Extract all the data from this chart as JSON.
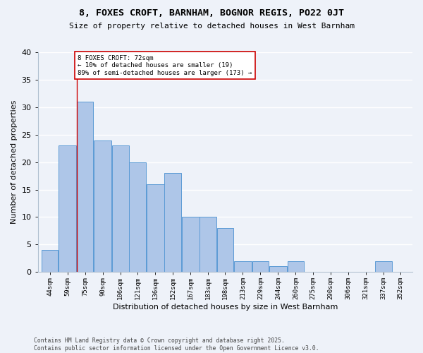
{
  "title": "8, FOXES CROFT, BARNHAM, BOGNOR REGIS, PO22 0JT",
  "subtitle": "Size of property relative to detached houses in West Barnham",
  "xlabel": "Distribution of detached houses by size in West Barnham",
  "ylabel": "Number of detached properties",
  "bar_labels": [
    "44sqm",
    "59sqm",
    "75sqm",
    "90sqm",
    "106sqm",
    "121sqm",
    "136sqm",
    "152sqm",
    "167sqm",
    "183sqm",
    "198sqm",
    "213sqm",
    "229sqm",
    "244sqm",
    "260sqm",
    "275sqm",
    "290sqm",
    "306sqm",
    "321sqm",
    "337sqm",
    "352sqm"
  ],
  "bar_values": [
    4,
    23,
    31,
    24,
    23,
    20,
    16,
    18,
    10,
    10,
    8,
    2,
    2,
    1,
    2,
    0,
    0,
    0,
    0,
    2,
    0
  ],
  "bar_color": "#aec6e8",
  "bar_edgecolor": "#5b9bd5",
  "bin_edges": [
    44,
    59,
    75,
    90,
    106,
    121,
    136,
    152,
    167,
    183,
    198,
    213,
    229,
    244,
    260,
    275,
    290,
    306,
    321,
    337,
    352,
    367
  ],
  "annotation_title": "8 FOXES CROFT: 72sqm",
  "annotation_line1": "← 10% of detached houses are smaller (19)",
  "annotation_line2": "89% of semi-detached houses are larger (173) →",
  "vline_color": "#cc0000",
  "vline_x": 75,
  "footer1": "Contains HM Land Registry data © Crown copyright and database right 2025.",
  "footer2": "Contains public sector information licensed under the Open Government Licence v3.0.",
  "bg_color": "#eef2f9",
  "grid_color": "#ffffff",
  "ylim": [
    0,
    40
  ],
  "yticks": [
    0,
    5,
    10,
    15,
    20,
    25,
    30,
    35,
    40
  ]
}
